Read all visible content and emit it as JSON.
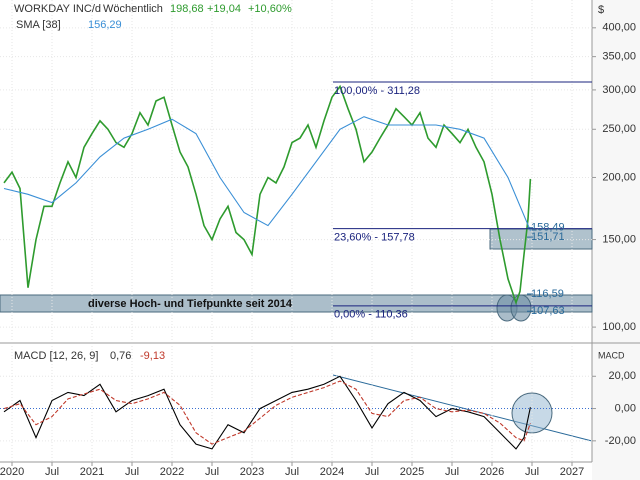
{
  "chart_data": [
    {
      "type": "line",
      "log_scale": true,
      "grid": true,
      "header": {
        "title": "WORKDAY INC/d",
        "period": "Wöchentlich",
        "last": "198,68",
        "change": "+19,04",
        "change_pct": "+10,60%"
      },
      "axis_label": "$",
      "xlim": [
        2019.85,
        2027.25
      ],
      "ylim": [
        94.2,
        455
      ],
      "yticks": [
        {
          "value": 100,
          "label": "100,00"
        },
        {
          "value": 150,
          "label": "150,00"
        },
        {
          "value": 200,
          "label": "200,00"
        },
        {
          "value": 250,
          "label": "250,00"
        },
        {
          "value": 300,
          "label": "300,00"
        },
        {
          "value": 350,
          "label": "350,00"
        },
        {
          "value": 400,
          "label": "400,00"
        }
      ],
      "series": [
        {
          "name": "WORKDAY INC/d",
          "color": "#2e9b2e",
          "x": [
            2019.9,
            2020.0,
            2020.1,
            2020.2,
            2020.3,
            2020.4,
            2020.5,
            2020.6,
            2020.7,
            2020.8,
            2020.9,
            2021.0,
            2021.1,
            2021.2,
            2021.3,
            2021.4,
            2021.5,
            2021.6,
            2021.7,
            2021.8,
            2021.9,
            2022.0,
            2022.1,
            2022.2,
            2022.3,
            2022.4,
            2022.5,
            2022.6,
            2022.7,
            2022.8,
            2022.9,
            2023.0,
            2023.1,
            2023.2,
            2023.3,
            2023.4,
            2023.5,
            2023.6,
            2023.7,
            2023.8,
            2023.9,
            2024.0,
            2024.1,
            2024.2,
            2024.3,
            2024.4,
            2024.5,
            2024.6,
            2024.7,
            2024.8,
            2024.9,
            2025.0,
            2025.1,
            2025.2,
            2025.3,
            2025.4,
            2025.5,
            2025.6,
            2025.7,
            2025.8,
            2025.9,
            2026.0,
            2026.1,
            2026.2,
            2026.3,
            2026.35,
            2026.4,
            2026.45,
            2026.48
          ],
          "values": [
            195,
            205,
            190,
            120,
            150,
            175,
            175,
            195,
            215,
            200,
            230,
            245,
            260,
            250,
            235,
            230,
            245,
            270,
            255,
            285,
            290,
            255,
            225,
            210,
            185,
            160,
            150,
            165,
            175,
            155,
            150,
            140,
            185,
            200,
            195,
            210,
            235,
            240,
            255,
            230,
            260,
            290,
            305,
            275,
            250,
            215,
            225,
            240,
            255,
            275,
            265,
            255,
            270,
            240,
            230,
            255,
            245,
            235,
            250,
            230,
            215,
            185,
            150,
            125,
            112,
            118,
            140,
            165,
            198.68
          ]
        },
        {
          "name": "SMA [38]",
          "color": "#3a8fd6",
          "value_label": "156,29",
          "x": [
            2019.9,
            2020.2,
            2020.5,
            2020.8,
            2021.1,
            2021.4,
            2021.7,
            2022.0,
            2022.3,
            2022.6,
            2022.9,
            2023.2,
            2023.5,
            2023.8,
            2024.1,
            2024.4,
            2024.7,
            2025.0,
            2025.3,
            2025.6,
            2025.9,
            2026.2,
            2026.48
          ],
          "values": [
            190,
            185,
            178,
            195,
            220,
            240,
            250,
            262,
            245,
            200,
            170,
            160,
            185,
            215,
            250,
            265,
            255,
            255,
            255,
            250,
            240,
            200,
            156.29
          ]
        }
      ],
      "fib_levels": [
        {
          "value": 311.28,
          "label": "100,00% - 311,28"
        },
        {
          "value": 157.78,
          "label": "23,60% - 157,78"
        },
        {
          "value": 110.36,
          "label": "0,00% - 110,36"
        }
      ],
      "price_labels": [
        {
          "value": 158.49,
          "label": "158,49"
        },
        {
          "value": 151.71,
          "label": "151,71"
        },
        {
          "value": 116.59,
          "label": "116,59"
        },
        {
          "value": 107.63,
          "label": "107,63"
        }
      ],
      "zone_label": "diverse Hoch- und Tiefpunkte seit 2014"
    },
    {
      "type": "line",
      "grid": true,
      "title": "MACD [12, 26, 9]",
      "last_labels": [
        "0,76",
        "-9,13"
      ],
      "axis_label": "MACD",
      "xlim": [
        2019.85,
        2027.25
      ],
      "ylim": [
        -33.1,
        38.75
      ],
      "yticks": [
        {
          "value": -20,
          "label": "-20,00"
        },
        {
          "value": 0,
          "label": "0,00"
        },
        {
          "value": 20,
          "label": "20,00"
        }
      ],
      "xticks": [
        2020,
        {
          "value": 2020.5,
          "label": "Jul"
        },
        2021,
        {
          "value": 2021.5,
          "label": "Jul"
        },
        2022,
        {
          "value": 2022.5,
          "label": "Jul"
        },
        2023,
        {
          "value": 2023.5,
          "label": "Jul"
        },
        2024,
        {
          "value": 2024.5,
          "label": "Jul"
        },
        2025,
        {
          "value": 2025.5,
          "label": "Jul"
        },
        2026,
        {
          "value": 2026.5,
          "label": "Jul"
        },
        2027
      ],
      "x": [
        2019.9,
        2020.1,
        2020.3,
        2020.5,
        2020.7,
        2020.9,
        2021.1,
        2021.3,
        2021.5,
        2021.7,
        2021.9,
        2022.1,
        2022.3,
        2022.5,
        2022.7,
        2022.9,
        2023.1,
        2023.3,
        2023.5,
        2023.7,
        2023.9,
        2024.1,
        2024.3,
        2024.5,
        2024.7,
        2024.9,
        2025.1,
        2025.3,
        2025.5,
        2025.7,
        2025.9,
        2026.1,
        2026.3,
        2026.4,
        2026.48
      ],
      "series": [
        {
          "color": "#000000",
          "dash": false,
          "values": [
            -2,
            5,
            -18,
            5,
            10,
            8,
            15,
            -2,
            5,
            8,
            12,
            -10,
            -22,
            -25,
            -10,
            -15,
            0,
            5,
            10,
            12,
            15,
            20,
            5,
            -12,
            3,
            10,
            5,
            -5,
            0,
            -2,
            -5,
            -15,
            -25,
            -18,
            0.76
          ]
        },
        {
          "color": "#c0392b",
          "dash": true,
          "values": [
            0,
            3,
            -10,
            -5,
            6,
            9,
            12,
            5,
            3,
            6,
            10,
            2,
            -15,
            -22,
            -18,
            -14,
            -6,
            2,
            7,
            10,
            13,
            17,
            12,
            -3,
            -5,
            5,
            7,
            0,
            -2,
            -1,
            -3,
            -9,
            -18,
            -20,
            -9.13
          ]
        }
      ]
    }
  ]
}
